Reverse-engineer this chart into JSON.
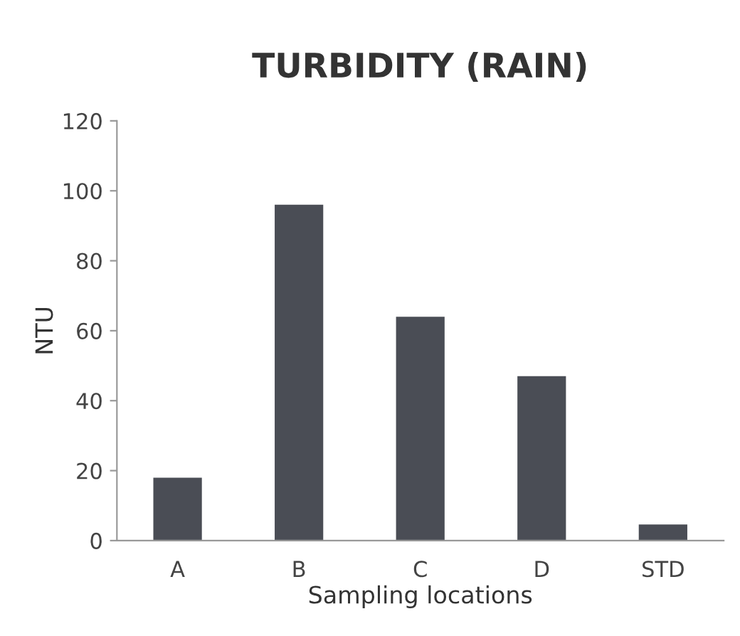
{
  "chart_data": {
    "type": "bar",
    "title": "TURBIDITY (RAIN)",
    "xlabel": "Sampling locations",
    "ylabel": "NTU",
    "categories": [
      "A",
      "B",
      "C",
      "D",
      "STD"
    ],
    "values": [
      18,
      96,
      64,
      47,
      4.6
    ],
    "color": "#4a4d55",
    "ylim": [
      0,
      120
    ],
    "yticks": [
      0,
      20,
      40,
      60,
      80,
      100,
      120
    ],
    "grid": false
  }
}
